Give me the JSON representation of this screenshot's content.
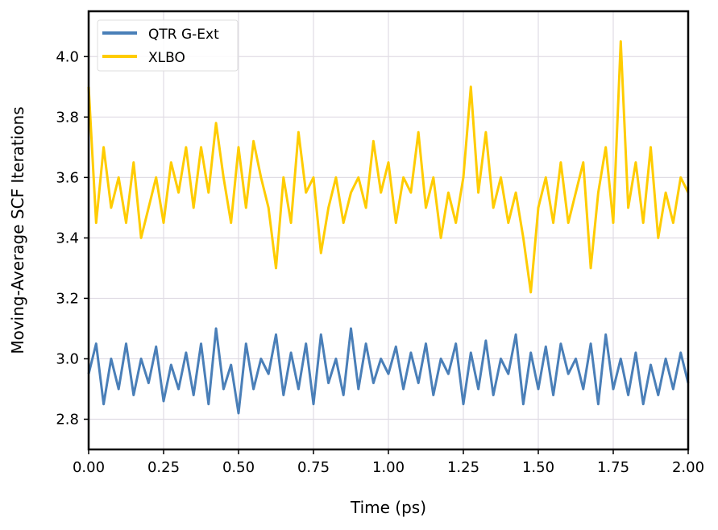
{
  "chart_data": {
    "type": "line",
    "title": "",
    "xlabel": "Time (ps)",
    "ylabel": "Moving-Average SCF Iterations",
    "xlim": [
      0,
      2.0
    ],
    "ylim": [
      2.7,
      4.15
    ],
    "xticks": [
      "0.00",
      "0.25",
      "0.50",
      "0.75",
      "1.00",
      "1.25",
      "1.50",
      "1.75",
      "2.00"
    ],
    "yticks": [
      "2.8",
      "3.0",
      "3.2",
      "3.4",
      "3.6",
      "3.8",
      "4.0"
    ],
    "grid": true,
    "legend": "top-left",
    "x_step": 0.025,
    "series": [
      {
        "name": "QTR G-Ext",
        "color": "#4a7fb8",
        "values": [
          2.95,
          3.05,
          2.85,
          3.0,
          2.9,
          3.05,
          2.88,
          3.0,
          2.92,
          3.04,
          2.86,
          2.98,
          2.9,
          3.02,
          2.88,
          3.05,
          2.85,
          3.1,
          2.9,
          2.98,
          2.82,
          3.05,
          2.9,
          3.0,
          2.95,
          3.08,
          2.88,
          3.02,
          2.9,
          3.05,
          2.85,
          3.08,
          2.92,
          3.0,
          2.88,
          3.1,
          2.9,
          3.05,
          2.92,
          3.0,
          2.95,
          3.04,
          2.9,
          3.02,
          2.92,
          3.05,
          2.88,
          3.0,
          2.95,
          3.05,
          2.85,
          3.02,
          2.9,
          3.06,
          2.88,
          3.0,
          2.95,
          3.08,
          2.85,
          3.02,
          2.9,
          3.04,
          2.88,
          3.05,
          2.95,
          3.0,
          2.9,
          3.05,
          2.85,
          3.08,
          2.9,
          3.0,
          2.88,
          3.02,
          2.85,
          2.98,
          2.88,
          3.0,
          2.9,
          3.02,
          2.92
        ]
      },
      {
        "name": "XLBO",
        "color": "#ffcc00",
        "values": [
          3.9,
          3.45,
          3.7,
          3.5,
          3.6,
          3.45,
          3.65,
          3.4,
          3.5,
          3.6,
          3.45,
          3.65,
          3.55,
          3.7,
          3.5,
          3.7,
          3.55,
          3.78,
          3.6,
          3.45,
          3.7,
          3.5,
          3.72,
          3.6,
          3.5,
          3.3,
          3.6,
          3.45,
          3.75,
          3.55,
          3.6,
          3.35,
          3.5,
          3.6,
          3.45,
          3.55,
          3.6,
          3.5,
          3.72,
          3.55,
          3.65,
          3.45,
          3.6,
          3.55,
          3.75,
          3.5,
          3.6,
          3.4,
          3.55,
          3.45,
          3.6,
          3.9,
          3.55,
          3.75,
          3.5,
          3.6,
          3.45,
          3.55,
          3.4,
          3.22,
          3.5,
          3.6,
          3.45,
          3.65,
          3.45,
          3.55,
          3.65,
          3.3,
          3.55,
          3.7,
          3.45,
          4.05,
          3.5,
          3.65,
          3.45,
          3.7,
          3.4,
          3.55,
          3.45,
          3.6,
          3.55
        ]
      }
    ]
  }
}
